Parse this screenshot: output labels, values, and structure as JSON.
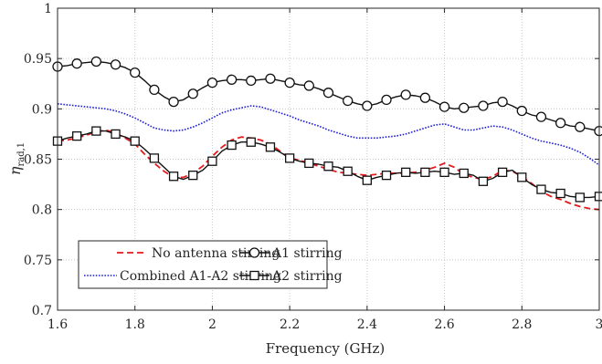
{
  "chart_data": {
    "type": "line",
    "xlabel": "Frequency (GHz)",
    "ylabel_main": "η",
    "ylabel_sub": "rad,1",
    "xlim": [
      1.6,
      3.0
    ],
    "ylim": [
      0.7,
      1.0
    ],
    "x_ticks": [
      1.6,
      1.8,
      2.0,
      2.2,
      2.4,
      2.6,
      2.8,
      3.0
    ],
    "x_tick_labels": [
      "1.6",
      "1.8",
      "2",
      "2.2",
      "2.4",
      "2.6",
      "2.8",
      "3"
    ],
    "y_ticks": [
      0.7,
      0.75,
      0.8,
      0.85,
      0.9,
      0.95,
      1.0
    ],
    "y_tick_labels": [
      "0.7",
      "0.75",
      "0.8",
      "0.85",
      "0.9",
      "0.95",
      "1"
    ],
    "grid": true,
    "legend_placement": "bottom-left",
    "series": [
      {
        "name": "No antenna stirring",
        "color": "#e41a1c",
        "style": "dashed",
        "marker": "none",
        "x": [
          1.6,
          1.625,
          1.65,
          1.675,
          1.7,
          1.725,
          1.75,
          1.775,
          1.8,
          1.825,
          1.85,
          1.875,
          1.9,
          1.925,
          1.95,
          1.975,
          2.0,
          2.025,
          2.05,
          2.075,
          2.1,
          2.125,
          2.15,
          2.175,
          2.2,
          2.225,
          2.25,
          2.275,
          2.3,
          2.325,
          2.35,
          2.375,
          2.4,
          2.425,
          2.45,
          2.475,
          2.5,
          2.525,
          2.55,
          2.575,
          2.6,
          2.625,
          2.65,
          2.675,
          2.7,
          2.725,
          2.75,
          2.775,
          2.8,
          2.825,
          2.85,
          2.875,
          2.9,
          2.925,
          2.95,
          2.975,
          3.0
        ],
        "values": [
          0.868,
          0.869,
          0.871,
          0.874,
          0.877,
          0.879,
          0.876,
          0.871,
          0.865,
          0.855,
          0.846,
          0.838,
          0.832,
          0.832,
          0.836,
          0.843,
          0.853,
          0.862,
          0.869,
          0.872,
          0.871,
          0.869,
          0.865,
          0.858,
          0.851,
          0.849,
          0.846,
          0.843,
          0.84,
          0.837,
          0.836,
          0.835,
          0.834,
          0.835,
          0.836,
          0.836,
          0.836,
          0.837,
          0.839,
          0.842,
          0.846,
          0.842,
          0.835,
          0.832,
          0.83,
          0.833,
          0.839,
          0.838,
          0.833,
          0.826,
          0.818,
          0.813,
          0.81,
          0.806,
          0.803,
          0.801,
          0.8
        ]
      },
      {
        "name": "Combined A1-A2 stirring",
        "color": "#1f1fd6",
        "style": "dotted",
        "marker": "none",
        "x": [
          1.6,
          1.625,
          1.65,
          1.675,
          1.7,
          1.725,
          1.75,
          1.775,
          1.8,
          1.825,
          1.85,
          1.875,
          1.9,
          1.925,
          1.95,
          1.975,
          2.0,
          2.025,
          2.05,
          2.075,
          2.1,
          2.125,
          2.15,
          2.175,
          2.2,
          2.225,
          2.25,
          2.275,
          2.3,
          2.325,
          2.35,
          2.375,
          2.4,
          2.425,
          2.45,
          2.475,
          2.5,
          2.525,
          2.55,
          2.575,
          2.6,
          2.625,
          2.65,
          2.675,
          2.7,
          2.725,
          2.75,
          2.775,
          2.8,
          2.825,
          2.85,
          2.875,
          2.9,
          2.925,
          2.95,
          2.975,
          3.0
        ],
        "values": [
          0.905,
          0.904,
          0.903,
          0.902,
          0.901,
          0.9,
          0.898,
          0.895,
          0.891,
          0.886,
          0.881,
          0.879,
          0.878,
          0.879,
          0.882,
          0.886,
          0.891,
          0.896,
          0.899,
          0.901,
          0.903,
          0.902,
          0.899,
          0.896,
          0.893,
          0.889,
          0.886,
          0.883,
          0.879,
          0.876,
          0.873,
          0.871,
          0.871,
          0.871,
          0.872,
          0.873,
          0.875,
          0.878,
          0.881,
          0.884,
          0.885,
          0.882,
          0.879,
          0.879,
          0.881,
          0.883,
          0.882,
          0.879,
          0.875,
          0.871,
          0.868,
          0.866,
          0.864,
          0.861,
          0.857,
          0.851,
          0.844
        ]
      },
      {
        "name": "A1 stirring",
        "color": "#111111",
        "style": "solid",
        "marker": "circle",
        "x": [
          1.6,
          1.625,
          1.65,
          1.675,
          1.7,
          1.725,
          1.75,
          1.775,
          1.8,
          1.825,
          1.85,
          1.875,
          1.9,
          1.925,
          1.95,
          1.975,
          2.0,
          2.025,
          2.05,
          2.075,
          2.1,
          2.125,
          2.15,
          2.175,
          2.2,
          2.225,
          2.25,
          2.275,
          2.3,
          2.325,
          2.35,
          2.375,
          2.4,
          2.425,
          2.45,
          2.475,
          2.5,
          2.525,
          2.55,
          2.575,
          2.6,
          2.625,
          2.65,
          2.675,
          2.7,
          2.725,
          2.75,
          2.775,
          2.8,
          2.825,
          2.85,
          2.875,
          2.9,
          2.925,
          2.95,
          2.975,
          3.0
        ],
        "values": [
          0.942,
          0.943,
          0.945,
          0.946,
          0.947,
          0.946,
          0.944,
          0.941,
          0.936,
          0.928,
          0.919,
          0.912,
          0.907,
          0.909,
          0.915,
          0.921,
          0.926,
          0.928,
          0.929,
          0.929,
          0.928,
          0.929,
          0.93,
          0.928,
          0.926,
          0.924,
          0.923,
          0.92,
          0.916,
          0.912,
          0.908,
          0.905,
          0.903,
          0.905,
          0.909,
          0.912,
          0.914,
          0.913,
          0.911,
          0.907,
          0.902,
          0.9,
          0.901,
          0.902,
          0.903,
          0.906,
          0.907,
          0.903,
          0.898,
          0.894,
          0.892,
          0.889,
          0.886,
          0.883,
          0.882,
          0.88,
          0.878
        ]
      },
      {
        "name": "A2 stirring",
        "color": "#111111",
        "style": "solid",
        "marker": "square",
        "x": [
          1.6,
          1.625,
          1.65,
          1.675,
          1.7,
          1.725,
          1.75,
          1.775,
          1.8,
          1.825,
          1.85,
          1.875,
          1.9,
          1.925,
          1.95,
          1.975,
          2.0,
          2.025,
          2.05,
          2.075,
          2.1,
          2.125,
          2.15,
          2.175,
          2.2,
          2.225,
          2.25,
          2.275,
          2.3,
          2.325,
          2.35,
          2.375,
          2.4,
          2.425,
          2.45,
          2.475,
          2.5,
          2.525,
          2.55,
          2.575,
          2.6,
          2.625,
          2.65,
          2.675,
          2.7,
          2.725,
          2.75,
          2.775,
          2.8,
          2.825,
          2.85,
          2.875,
          2.9,
          2.925,
          2.95,
          2.975,
          3.0
        ],
        "values": [
          0.868,
          0.871,
          0.873,
          0.875,
          0.878,
          0.878,
          0.875,
          0.872,
          0.868,
          0.86,
          0.851,
          0.842,
          0.833,
          0.83,
          0.834,
          0.839,
          0.848,
          0.858,
          0.864,
          0.867,
          0.867,
          0.865,
          0.862,
          0.857,
          0.851,
          0.848,
          0.846,
          0.845,
          0.843,
          0.842,
          0.838,
          0.833,
          0.829,
          0.832,
          0.834,
          0.836,
          0.837,
          0.836,
          0.837,
          0.838,
          0.837,
          0.835,
          0.836,
          0.834,
          0.828,
          0.831,
          0.837,
          0.839,
          0.832,
          0.825,
          0.82,
          0.817,
          0.816,
          0.813,
          0.812,
          0.812,
          0.813
        ]
      }
    ]
  }
}
